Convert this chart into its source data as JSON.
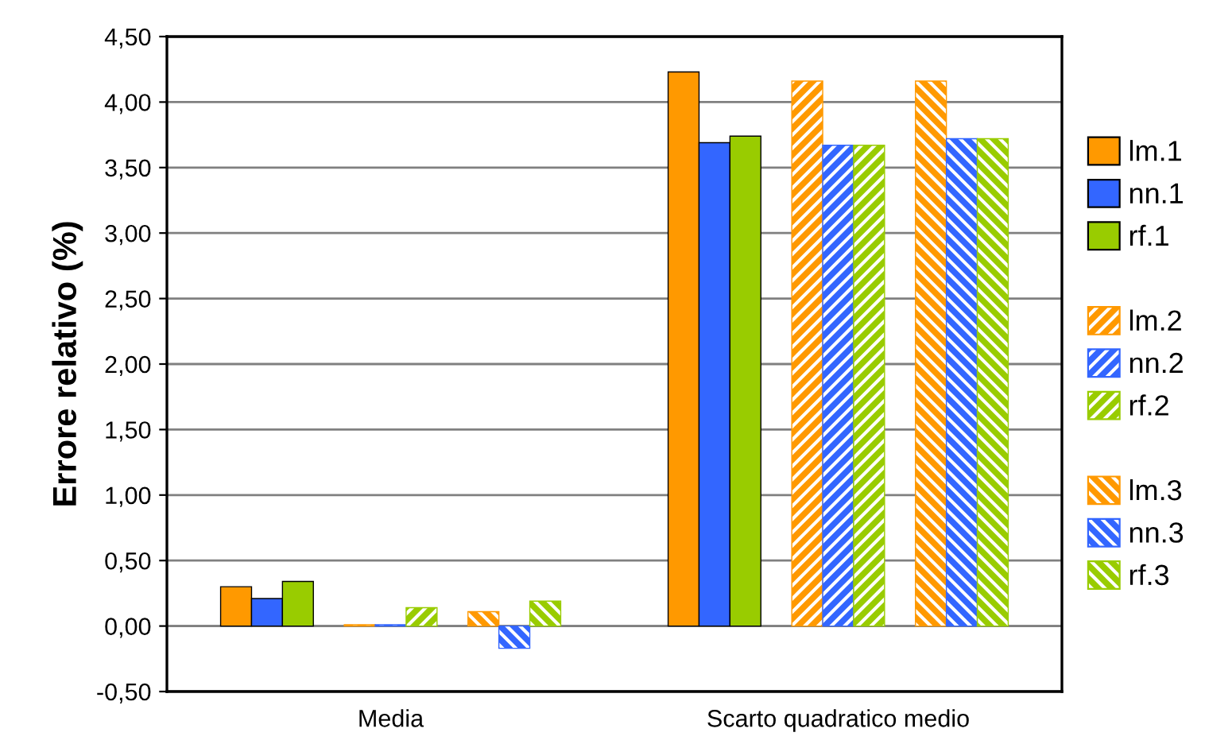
{
  "chart_data": {
    "type": "bar",
    "ylabel": "Errore relativo (%)",
    "categories": [
      "Media",
      "Scarto quadratico medio"
    ],
    "series": [
      {
        "name": "lm.1",
        "color": "#ff9900",
        "values": [
          0.3,
          4.23
        ]
      },
      {
        "name": "nn.1",
        "color": "#3366ff",
        "values": [
          0.21,
          3.69
        ]
      },
      {
        "name": "rf.1",
        "color": "#99cc00",
        "values": [
          0.34,
          3.74
        ]
      },
      {
        "name": "lm.2",
        "color": "#ff9900",
        "values": [
          0.01,
          4.16
        ]
      },
      {
        "name": "nn.2",
        "color": "#3366ff",
        "values": [
          0.01,
          3.67
        ]
      },
      {
        "name": "rf.2",
        "color": "#99cc00",
        "values": [
          0.14,
          3.67
        ]
      },
      {
        "name": "lm.3",
        "color": "#ff9900",
        "values": [
          0.11,
          4.16
        ]
      },
      {
        "name": "nn.3",
        "color": "#3366ff",
        "values": [
          -0.17,
          3.72
        ]
      },
      {
        "name": "rf.3",
        "color": "#99cc00",
        "values": [
          0.19,
          3.72
        ]
      }
    ],
    "ylim": [
      -0.5,
      4.5
    ],
    "yticks": [
      {
        "value": -0.5,
        "label": "-0,50"
      },
      {
        "value": 0,
        "label": "0,00"
      },
      {
        "value": 0.5,
        "label": "0,50"
      },
      {
        "value": 1,
        "label": "1,00"
      },
      {
        "value": 1.5,
        "label": "1,50"
      },
      {
        "value": 2,
        "label": "2,00"
      },
      {
        "value": 2.5,
        "label": "2,50"
      },
      {
        "value": 3,
        "label": "3,00"
      },
      {
        "value": 3.5,
        "label": "3,50"
      },
      {
        "value": 4,
        "label": "4,00"
      },
      {
        "value": 4.5,
        "label": "4,50"
      }
    ],
    "grid": "y",
    "legend": "right"
  }
}
